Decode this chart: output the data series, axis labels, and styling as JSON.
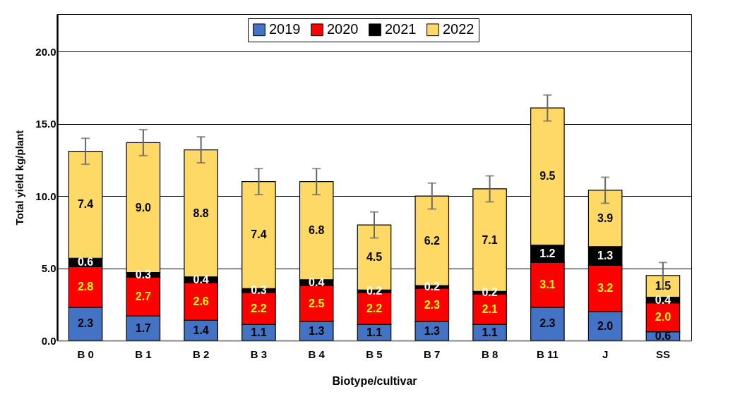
{
  "chart_data": {
    "type": "bar",
    "stacked": true,
    "xlabel": "Biotype/cultivar",
    "ylabel": "Total yield kg/plant",
    "categories": [
      "B 0",
      "B 1",
      "B 2",
      "B 3",
      "B 4",
      "B 5",
      "B 7",
      "B 8",
      "B 11",
      "J",
      "SS"
    ],
    "series": [
      {
        "name": "2019",
        "color": "#4472c4",
        "values": [
          2.3,
          1.7,
          1.4,
          1.1,
          1.3,
          1.1,
          1.3,
          1.1,
          2.3,
          2.0,
          0.6
        ],
        "value_labels": [
          "2.3",
          "1.7",
          "1.4",
          "1.1",
          "1.3",
          "1.1",
          "1.3",
          "1.1",
          "2.3",
          "2.0",
          "0.6"
        ]
      },
      {
        "name": "2020",
        "color": "#ff0000",
        "values": [
          2.8,
          2.7,
          2.6,
          2.2,
          2.5,
          2.2,
          2.3,
          2.1,
          3.1,
          3.2,
          2.0
        ],
        "value_labels": [
          "2.8",
          "2.7",
          "2.6",
          "2.2",
          "2.5",
          "2.2",
          "2.3",
          "2.1",
          "3.1",
          "3.2",
          "2.0"
        ]
      },
      {
        "name": "2021",
        "color": "#000000",
        "values": [
          0.6,
          0.3,
          0.4,
          0.3,
          0.4,
          0.2,
          0.2,
          0.2,
          1.2,
          1.3,
          0.4
        ],
        "value_labels": [
          "0.6",
          "0.3",
          "0.4",
          "0.3",
          "0.4",
          "0.2",
          "0.2",
          "0.2",
          "1.2",
          "1.3",
          "0.4"
        ]
      },
      {
        "name": "2022",
        "color": "#ffd966",
        "values": [
          7.4,
          9.0,
          8.8,
          7.4,
          6.8,
          4.5,
          6.2,
          7.1,
          9.5,
          3.9,
          1.5
        ],
        "value_labels": [
          "7.4",
          "9.0",
          "8.8",
          "7.4",
          "6.8",
          "4.5",
          "6.2",
          "7.1",
          "9.5",
          "3.9",
          "1.5"
        ],
        "errors": [
          0.9,
          0.9,
          0.9,
          0.9,
          0.9,
          0.9,
          0.9,
          0.9,
          0.9,
          0.9,
          0.9
        ]
      }
    ],
    "ylim": [
      0,
      22.6
    ],
    "yticks": [
      {
        "value": 0,
        "label": "0.0"
      },
      {
        "value": 5,
        "label": "5.0"
      },
      {
        "value": 10,
        "label": "10.0"
      },
      {
        "value": 15,
        "label": "15.0"
      },
      {
        "value": 20,
        "label": "20.0"
      }
    ],
    "grid": "y",
    "legend": "top"
  }
}
